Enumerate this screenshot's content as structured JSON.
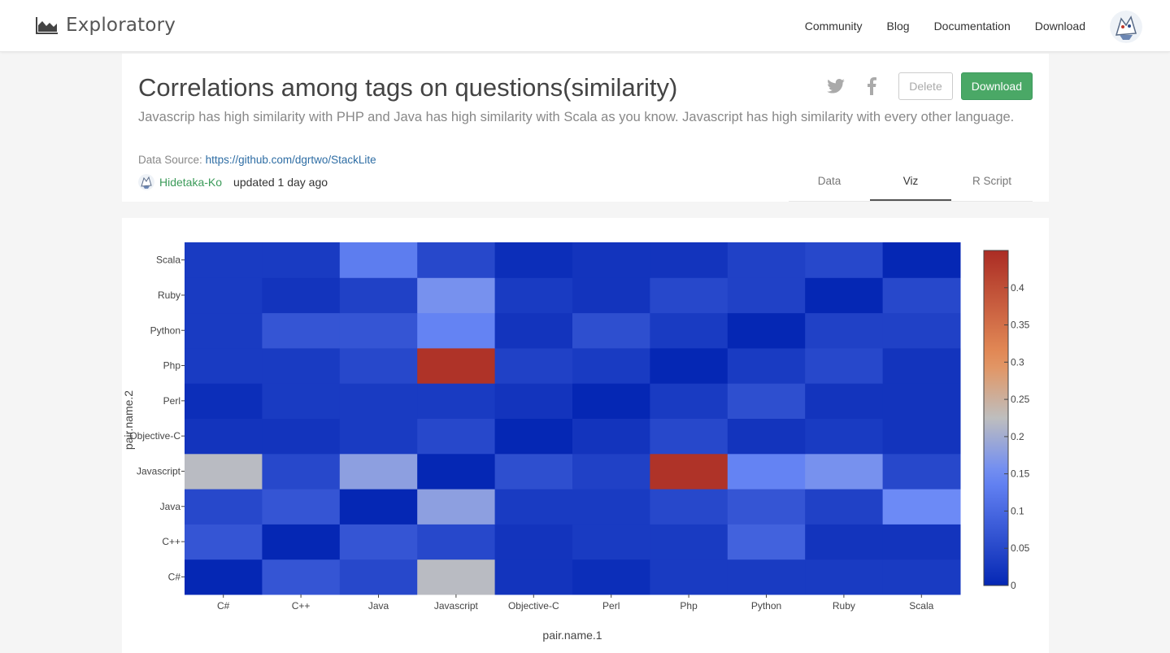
{
  "header": {
    "brand": "Exploratory",
    "nav": [
      "Community",
      "Blog",
      "Documentation",
      "Download"
    ]
  },
  "page": {
    "title": "Correlations among tags on questions(similarity)",
    "description": "Javascrip has high similarity with PHP and Java has high similarity with Scala as you know. Javascript has high similarity with every other language.",
    "source_label": "Data Source:",
    "source_url": "https://github.com/dgrtwo/StackLite",
    "author": "Hidetaka-Ko",
    "updated": "updated 1 day ago",
    "delete_label": "Delete",
    "download_label": "Download",
    "tabs": [
      "Data",
      "Viz",
      "R Script"
    ],
    "active_tab": "Viz"
  },
  "chart_data": {
    "type": "heatmap",
    "xlabel": "pair.name.1",
    "ylabel": "pair.name.2",
    "x": [
      "C#",
      "C++",
      "Java",
      "Javascript",
      "Objective-C",
      "Perl",
      "Php",
      "Python",
      "Ruby",
      "Scala"
    ],
    "y": [
      "C#",
      "C++",
      "Java",
      "Javascript",
      "Objective-C",
      "Perl",
      "Php",
      "Python",
      "Ruby",
      "Scala"
    ],
    "z": [
      [
        0.0,
        0.07,
        0.05,
        0.22,
        0.02,
        0.01,
        0.03,
        0.03,
        0.03,
        0.03
      ],
      [
        0.07,
        0.0,
        0.07,
        0.05,
        0.02,
        0.03,
        0.03,
        0.09,
        0.02,
        0.02
      ],
      [
        0.05,
        0.07,
        0.0,
        0.18,
        0.03,
        0.03,
        0.05,
        0.07,
        0.04,
        0.15
      ],
      [
        0.22,
        0.05,
        0.18,
        0.0,
        0.06,
        0.04,
        0.44,
        0.14,
        0.16,
        0.05
      ],
      [
        0.02,
        0.02,
        0.03,
        0.05,
        0.0,
        0.02,
        0.05,
        0.02,
        0.03,
        0.02
      ],
      [
        0.01,
        0.03,
        0.03,
        0.03,
        0.02,
        0.0,
        0.03,
        0.06,
        0.02,
        0.02
      ],
      [
        0.03,
        0.03,
        0.05,
        0.44,
        0.04,
        0.03,
        0.0,
        0.03,
        0.05,
        0.02
      ],
      [
        0.03,
        0.07,
        0.07,
        0.14,
        0.02,
        0.06,
        0.03,
        0.0,
        0.04,
        0.04
      ],
      [
        0.03,
        0.02,
        0.04,
        0.16,
        0.03,
        0.02,
        0.05,
        0.04,
        0.0,
        0.05
      ],
      [
        0.03,
        0.03,
        0.13,
        0.05,
        0.01,
        0.02,
        0.02,
        0.04,
        0.05,
        0.0
      ]
    ],
    "zlim": [
      0,
      0.45
    ],
    "colorbar_ticks": [
      "0",
      "0.05",
      "0.1",
      "0.15",
      "0.2",
      "0.25",
      "0.3",
      "0.35",
      "0.4"
    ],
    "colors": {
      "low": "#0527b4",
      "mid": "#bebebe",
      "high": "#ab2c24"
    }
  }
}
